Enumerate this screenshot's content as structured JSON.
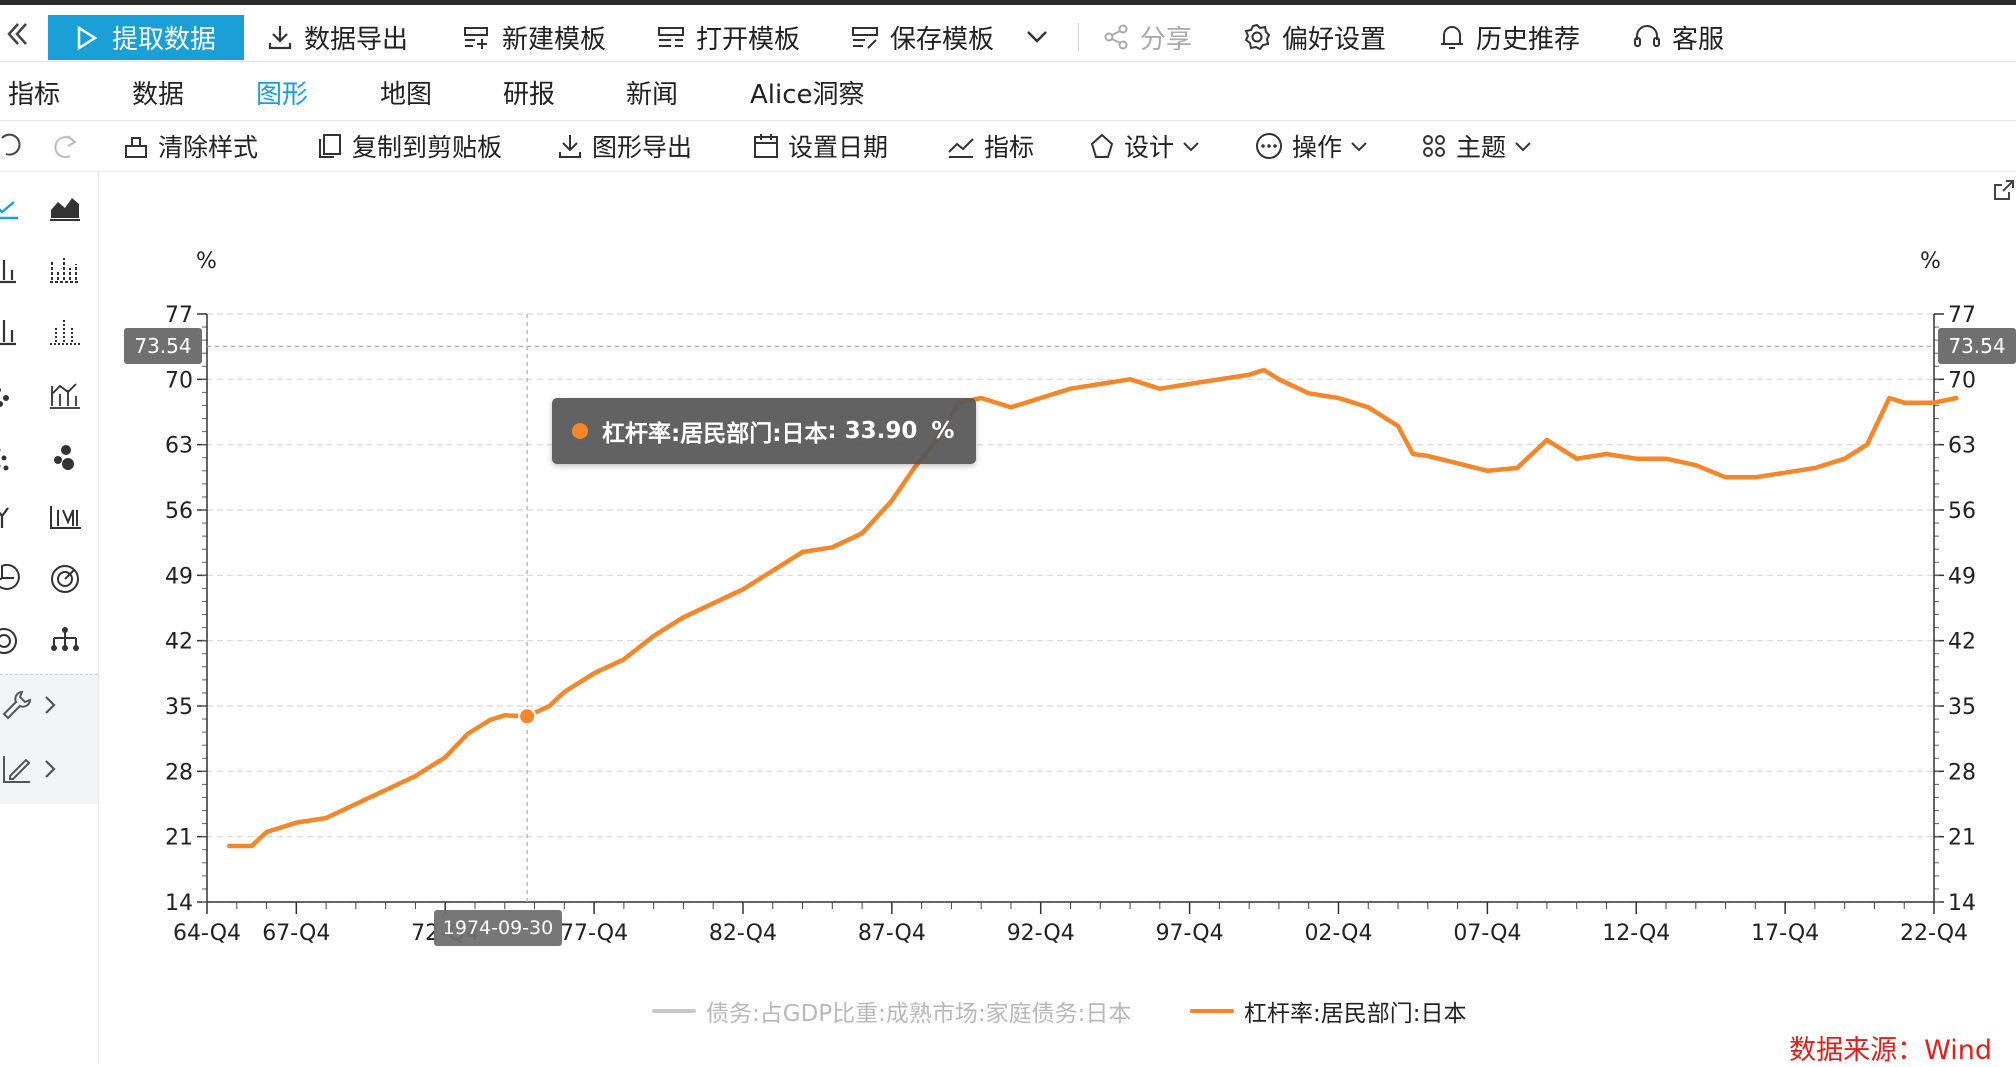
{
  "top_toolbar": {
    "fetch_data": "提取数据",
    "export_data": "数据导出",
    "new_template": "新建模板",
    "open_template": "打开模板",
    "save_template": "保存模板",
    "share": "分享",
    "preferences": "偏好设置",
    "history": "历史推荐",
    "service": "客服"
  },
  "tabs": [
    {
      "label": "指标"
    },
    {
      "label": "数据"
    },
    {
      "label": "图形"
    },
    {
      "label": "地图"
    },
    {
      "label": "研报"
    },
    {
      "label": "新闻"
    },
    {
      "label": "Alice洞察"
    }
  ],
  "chart_toolbar": {
    "clear_style": "清除样式",
    "copy_clipboard": "复制到剪贴板",
    "export_chart": "图形导出",
    "set_date": "设置日期",
    "indicator": "指标",
    "design": "设计",
    "operation": "操作",
    "theme": "主题"
  },
  "colors": {
    "accent": "#1a9fd6",
    "series_active": "#f5862a",
    "series_inactive": "#c8c8c8",
    "source_text": "#e0201f"
  },
  "chart_data": {
    "type": "line",
    "y_unit_left": "%",
    "y_unit_right": "%",
    "ylim": [
      14,
      77
    ],
    "y_ticks": [
      14,
      21,
      28,
      35,
      42,
      49,
      56,
      63,
      70,
      77
    ],
    "x_tick_labels": [
      "64-Q4",
      "67-Q4",
      "72-Q4",
      "77-Q4",
      "82-Q4",
      "87-Q4",
      "92-Q4",
      "97-Q4",
      "02-Q4",
      "07-Q4",
      "12-Q4",
      "17-Q4",
      "22-Q4"
    ],
    "x_tick_years": [
      1964,
      1967,
      1972,
      1977,
      1982,
      1987,
      1992,
      1997,
      2002,
      2007,
      2012,
      2017,
      2022
    ],
    "grid": true,
    "crosshair": {
      "y_value": "73.54",
      "x_label": "1974-09-30",
      "x_year": 1974.75
    },
    "tooltip": {
      "series": "杠杆率:居民部门:日本",
      "value": "33.90",
      "unit": "%",
      "y": 33.9
    },
    "legend_position": "bottom",
    "series": [
      {
        "name": "债务:占GDP比重:成熟市场:家庭债务:日本",
        "visible": false,
        "values": []
      },
      {
        "name": "杠杆率:居民部门:日本",
        "visible": true,
        "x": [
          1964.75,
          1965.5,
          1966.0,
          1967.0,
          1968.0,
          1969.0,
          1970.0,
          1971.0,
          1972.0,
          1972.75,
          1973.5,
          1974.0,
          1974.75,
          1975.5,
          1976.0,
          1977.0,
          1978.0,
          1979.0,
          1980.0,
          1981.0,
          1982.0,
          1983.0,
          1984.0,
          1985.0,
          1986.0,
          1987.0,
          1987.75,
          1988.5,
          1989.25,
          1990.0,
          1991.0,
          1992.0,
          1993.0,
          1994.0,
          1995.0,
          1996.0,
          1997.0,
          1998.0,
          1999.0,
          1999.5,
          2000.0,
          2001.0,
          2002.0,
          2003.0,
          2004.0,
          2004.5,
          2005.0,
          2006.0,
          2007.0,
          2008.0,
          2009.0,
          2010.0,
          2011.0,
          2012.0,
          2013.0,
          2014.0,
          2015.0,
          2016.0,
          2017.0,
          2018.0,
          2019.0,
          2019.75,
          2020.5,
          2021.0,
          2022.0,
          2022.75
        ],
        "values": [
          20.0,
          20.0,
          21.5,
          22.5,
          23.0,
          24.5,
          26.0,
          27.5,
          29.5,
          32.0,
          33.5,
          34.0,
          33.9,
          35.0,
          36.5,
          38.5,
          40.0,
          42.5,
          44.5,
          46.0,
          47.5,
          49.5,
          51.5,
          52.0,
          53.5,
          57.0,
          60.5,
          63.5,
          67.5,
          68.0,
          67.0,
          68.0,
          69.0,
          69.5,
          70.0,
          69.0,
          69.5,
          70.0,
          70.5,
          71.0,
          70.0,
          68.5,
          68.0,
          67.0,
          65.0,
          62.0,
          61.8,
          61.0,
          60.2,
          60.5,
          63.5,
          61.5,
          62.0,
          61.5,
          61.5,
          60.8,
          59.5,
          59.5,
          60.0,
          60.5,
          61.5,
          63.0,
          68.0,
          67.5,
          67.5,
          68.0
        ]
      }
    ]
  },
  "legend": {
    "series1": "债务:占GDP比重:成熟市场:家庭债务:日本",
    "series2": "杠杆率:居民部门:日本"
  },
  "source": "数据来源：Wind"
}
